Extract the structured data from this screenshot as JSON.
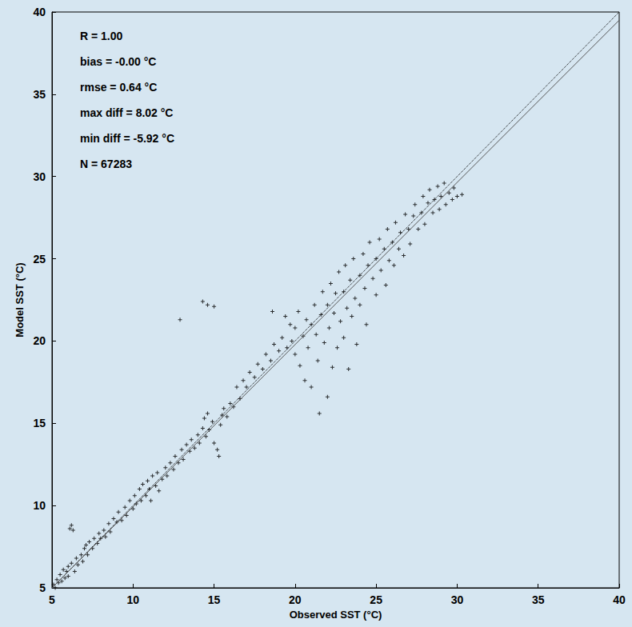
{
  "chart_data": {
    "type": "scatter",
    "xlabel": "Observed SST (°C)",
    "ylabel": "Model SST (°C)",
    "xlim": [
      5,
      40
    ],
    "ylim": [
      5,
      40
    ],
    "xticks": [
      5,
      10,
      15,
      20,
      25,
      30,
      35,
      40
    ],
    "yticks": [
      5,
      10,
      15,
      20,
      25,
      30,
      35,
      40
    ],
    "grid": false,
    "annotations": [
      "R = 1.00",
      "bias = -0.00 °C",
      "rmse = 0.64 °C",
      "max diff = 8.02 °C",
      "min diff = -5.92 °C",
      "N = 67283"
    ],
    "series": [
      {
        "type": "scatter",
        "color": "#000000",
        "marker": "plus",
        "x": [
          5.1,
          5.2,
          5.3,
          5.4,
          5.5,
          5.6,
          5.7,
          5.8,
          5.9,
          6.0,
          6.0,
          6.1,
          6.2,
          6.3,
          6.2,
          6.4,
          6.5,
          6.6,
          6.8,
          6.9,
          7.0,
          7.1,
          7.2,
          7.3,
          7.5,
          7.6,
          7.8,
          7.9,
          8.0,
          8.2,
          8.3,
          8.5,
          8.6,
          8.8,
          9.0,
          9.1,
          9.3,
          9.5,
          9.6,
          9.8,
          10.0,
          10.1,
          10.2,
          10.4,
          10.5,
          10.6,
          10.8,
          10.9,
          11.0,
          11.1,
          11.2,
          11.4,
          11.5,
          11.6,
          11.8,
          12.0,
          12.1,
          12.3,
          12.5,
          12.6,
          12.8,
          13.0,
          13.1,
          13.3,
          13.5,
          13.6,
          13.8,
          14.0,
          14.1,
          14.3,
          14.4,
          14.6,
          14.5,
          14.7,
          14.9,
          15.0,
          15.2,
          15.3,
          15.4,
          15.5,
          15.6,
          15.8,
          16.0,
          16.2,
          16.4,
          16.6,
          16.8,
          17.0,
          17.2,
          17.5,
          17.7,
          18.0,
          18.2,
          18.5,
          18.7,
          19.0,
          19.2,
          19.5,
          19.7,
          19.8,
          12.9,
          14.3,
          14.6,
          15.0,
          18.6,
          19.4,
          20.0,
          20.0,
          20.2,
          20.3,
          20.5,
          20.6,
          20.7,
          20.8,
          21.0,
          21.0,
          21.2,
          21.3,
          21.4,
          21.5,
          21.6,
          21.7,
          21.8,
          22.0,
          22.0,
          22.1,
          22.2,
          22.3,
          22.4,
          22.5,
          22.6,
          22.7,
          22.8,
          23.0,
          23.0,
          23.1,
          23.2,
          23.3,
          23.4,
          23.5,
          23.6,
          23.7,
          23.8,
          24.0,
          24.0,
          24.2,
          24.3,
          24.4,
          24.5,
          24.6,
          24.8,
          25.0,
          25.0,
          25.2,
          25.3,
          25.5,
          25.6,
          25.7,
          25.8,
          26.0,
          26.1,
          26.2,
          26.4,
          26.5,
          26.7,
          26.8,
          27.0,
          27.1,
          27.3,
          27.4,
          27.6,
          27.8,
          27.9,
          28.0,
          28.2,
          28.3,
          28.5,
          28.6,
          28.8,
          28.9,
          29.0,
          29.2,
          29.3,
          29.5,
          29.7,
          29.8,
          30.0,
          30.3
        ],
        "values": [
          5.2,
          5.0,
          5.5,
          5.3,
          5.8,
          5.4,
          6.1,
          5.6,
          6.0,
          6.3,
          5.7,
          8.6,
          8.8,
          8.5,
          6.5,
          6.0,
          6.8,
          6.4,
          7.0,
          6.6,
          7.4,
          7.6,
          7.0,
          7.8,
          7.4,
          8.0,
          7.7,
          8.3,
          8.0,
          8.5,
          8.1,
          8.9,
          8.4,
          9.2,
          9.0,
          9.6,
          9.1,
          9.9,
          9.4,
          10.3,
          9.8,
          10.6,
          10.1,
          11.0,
          10.3,
          11.3,
          10.6,
          11.5,
          11.0,
          10.3,
          11.8,
          11.2,
          12.0,
          10.9,
          11.6,
          12.3,
          11.8,
          12.6,
          12.2,
          13.0,
          12.6,
          13.4,
          12.8,
          13.7,
          13.3,
          14.0,
          13.5,
          14.3,
          13.8,
          14.7,
          15.3,
          15.6,
          14.2,
          14.6,
          15.1,
          13.8,
          13.4,
          13.0,
          14.9,
          15.5,
          15.9,
          15.4,
          16.2,
          16.0,
          17.2,
          16.5,
          17.6,
          17.2,
          18.1,
          17.8,
          18.6,
          18.3,
          19.2,
          18.8,
          19.8,
          19.4,
          20.2,
          19.6,
          21.0,
          20.0,
          21.3,
          22.4,
          22.2,
          22.1,
          21.8,
          21.5,
          19.2,
          20.8,
          21.8,
          18.5,
          20.3,
          17.6,
          21.3,
          19.6,
          21.0,
          17.2,
          22.2,
          20.4,
          18.8,
          15.6,
          21.6,
          23.0,
          19.9,
          22.2,
          16.6,
          20.8,
          23.5,
          18.4,
          21.7,
          22.9,
          19.6,
          24.2,
          21.2,
          23.0,
          20.2,
          24.6,
          22.0,
          18.3,
          23.7,
          21.5,
          25.0,
          22.6,
          19.8,
          24.0,
          22.2,
          25.3,
          23.2,
          21.0,
          24.6,
          26.0,
          23.8,
          25.0,
          22.8,
          26.2,
          24.3,
          25.6,
          23.4,
          26.8,
          24.9,
          26.0,
          24.6,
          27.2,
          25.6,
          26.6,
          25.2,
          27.7,
          26.8,
          25.9,
          27.6,
          28.3,
          26.8,
          27.8,
          28.8,
          27.1,
          28.4,
          29.2,
          27.8,
          28.6,
          29.4,
          28.0,
          28.8,
          29.6,
          28.3,
          29.0,
          28.6,
          29.3,
          28.8,
          28.9
        ]
      },
      {
        "type": "line",
        "color": "#000000",
        "line_style": "dotted",
        "x": [
          5,
          40
        ],
        "values": [
          5,
          40
        ]
      },
      {
        "type": "line",
        "color": "#555555",
        "line_style": "solid",
        "x": [
          5,
          40
        ],
        "values": [
          5.0,
          39.5
        ]
      }
    ]
  }
}
